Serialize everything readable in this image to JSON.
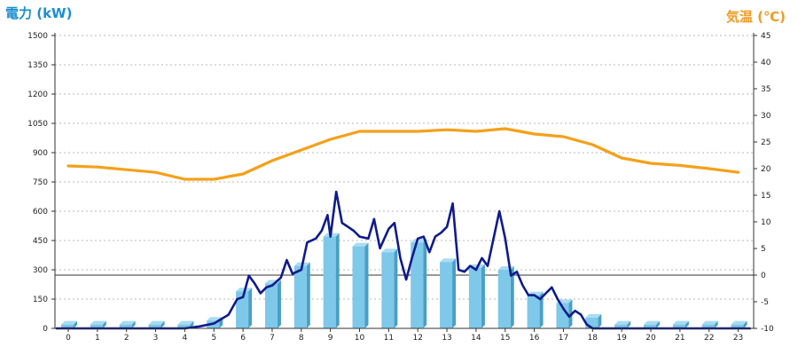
{
  "chart_data": {
    "type": "bar",
    "y_left_label": "電力 (kW)",
    "y_right_label": "気温 (℃)",
    "categories": [
      "0",
      "1",
      "2",
      "3",
      "4",
      "5",
      "6",
      "7",
      "8",
      "9",
      "10",
      "11",
      "12",
      "13",
      "14",
      "15",
      "16",
      "17",
      "18",
      "19",
      "20",
      "21",
      "22",
      "23"
    ],
    "left_ticks": [
      "0",
      "150",
      "300",
      "450",
      "600",
      "750",
      "900",
      "1050",
      "1200",
      "1350",
      "1500"
    ],
    "right_ticks": [
      "-10",
      "-5",
      "0",
      "5",
      "10",
      "15",
      "20",
      "25",
      "30",
      "35",
      "40",
      "45"
    ],
    "left_range": [
      0,
      1500
    ],
    "right_range": [
      -10,
      45
    ],
    "grid": true,
    "series": [
      {
        "kind": "bar",
        "color": "#7ec8ea",
        "values": [
          20,
          20,
          20,
          20,
          20,
          40,
          190,
          230,
          320,
          470,
          420,
          390,
          440,
          340,
          310,
          300,
          170,
          130,
          55,
          20,
          20,
          20,
          20,
          20
        ]
      },
      {
        "kind": "line",
        "axis": "left",
        "color": "#0f1b8c",
        "points": [
          [
            -0.4,
            0
          ],
          [
            0,
            0
          ],
          [
            1,
            0
          ],
          [
            2,
            0
          ],
          [
            3,
            0
          ],
          [
            4,
            0
          ],
          [
            4.5,
            10
          ],
          [
            5,
            25
          ],
          [
            5.5,
            70
          ],
          [
            5.8,
            150
          ],
          [
            6,
            160
          ],
          [
            6.2,
            270
          ],
          [
            6.4,
            230
          ],
          [
            6.6,
            180
          ],
          [
            6.8,
            210
          ],
          [
            7,
            220
          ],
          [
            7.3,
            260
          ],
          [
            7.5,
            350
          ],
          [
            7.7,
            280
          ],
          [
            8,
            300
          ],
          [
            8.2,
            440
          ],
          [
            8.5,
            460
          ],
          [
            8.7,
            500
          ],
          [
            8.9,
            580
          ],
          [
            9,
            470
          ],
          [
            9.2,
            700
          ],
          [
            9.4,
            540
          ],
          [
            9.6,
            520
          ],
          [
            9.8,
            500
          ],
          [
            10,
            470
          ],
          [
            10.3,
            460
          ],
          [
            10.5,
            560
          ],
          [
            10.7,
            410
          ],
          [
            11,
            510
          ],
          [
            11.2,
            540
          ],
          [
            11.4,
            360
          ],
          [
            11.6,
            250
          ],
          [
            11.8,
            360
          ],
          [
            12,
            460
          ],
          [
            12.2,
            470
          ],
          [
            12.4,
            390
          ],
          [
            12.6,
            470
          ],
          [
            12.8,
            490
          ],
          [
            13,
            520
          ],
          [
            13.2,
            640
          ],
          [
            13.4,
            300
          ],
          [
            13.6,
            290
          ],
          [
            13.8,
            320
          ],
          [
            14,
            300
          ],
          [
            14.2,
            360
          ],
          [
            14.4,
            320
          ],
          [
            14.6,
            460
          ],
          [
            14.8,
            600
          ],
          [
            15,
            460
          ],
          [
            15.2,
            270
          ],
          [
            15.4,
            290
          ],
          [
            15.6,
            220
          ],
          [
            15.8,
            170
          ],
          [
            16,
            170
          ],
          [
            16.2,
            150
          ],
          [
            16.4,
            180
          ],
          [
            16.6,
            210
          ],
          [
            16.8,
            150
          ],
          [
            17,
            100
          ],
          [
            17.2,
            60
          ],
          [
            17.4,
            90
          ],
          [
            17.6,
            70
          ],
          [
            17.8,
            20
          ],
          [
            18,
            0
          ],
          [
            18.5,
            0
          ],
          [
            23.4,
            0
          ]
        ]
      },
      {
        "kind": "line",
        "axis": "right",
        "color": "#f5a01a",
        "points": [
          [
            0,
            20.5
          ],
          [
            1,
            20.3
          ],
          [
            2,
            19.8
          ],
          [
            3,
            19.3
          ],
          [
            4,
            18
          ],
          [
            5,
            18
          ],
          [
            6,
            19
          ],
          [
            7,
            21.5
          ],
          [
            8,
            23.5
          ],
          [
            9,
            25.5
          ],
          [
            10,
            27
          ],
          [
            11,
            27
          ],
          [
            12,
            27
          ],
          [
            13,
            27.3
          ],
          [
            14,
            27
          ],
          [
            15,
            27.5
          ],
          [
            16,
            26.5
          ],
          [
            17,
            26
          ],
          [
            18,
            24.5
          ],
          [
            19,
            22
          ],
          [
            20,
            21
          ],
          [
            21,
            20.6
          ],
          [
            22,
            20
          ],
          [
            23,
            19.3
          ]
        ]
      }
    ]
  }
}
